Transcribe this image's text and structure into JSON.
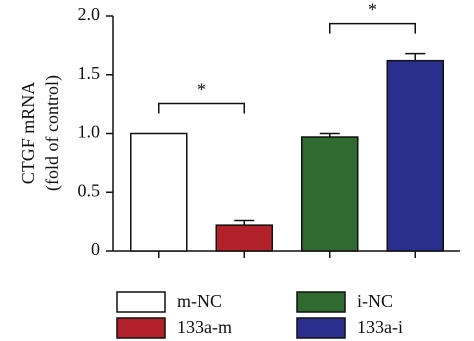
{
  "chart_data": {
    "type": "bar",
    "ylabel": [
      "CTGF mRNA",
      "(fold of control)"
    ],
    "categories": [
      "m-NC",
      "133a-m",
      "i-NC",
      "133a-i"
    ],
    "values": [
      1.0,
      0.22,
      0.97,
      1.62
    ],
    "errors": [
      0,
      0.04,
      0.03,
      0.06
    ],
    "colors": [
      "#ffffff",
      "#b3222a",
      "#2f6a30",
      "#2a2e8c"
    ],
    "ylim": [
      0,
      2
    ],
    "yticks": [
      0,
      0.5,
      {
        "value": 1,
        "label": "1.0"
      },
      1.5,
      {
        "value": 2,
        "label": "2.0"
      }
    ],
    "annotations": [
      {
        "text": "*",
        "between": [
          "m-NC",
          "133a-m"
        ]
      },
      {
        "text": "*",
        "between": [
          "i-NC",
          "133a-i"
        ]
      }
    ]
  }
}
